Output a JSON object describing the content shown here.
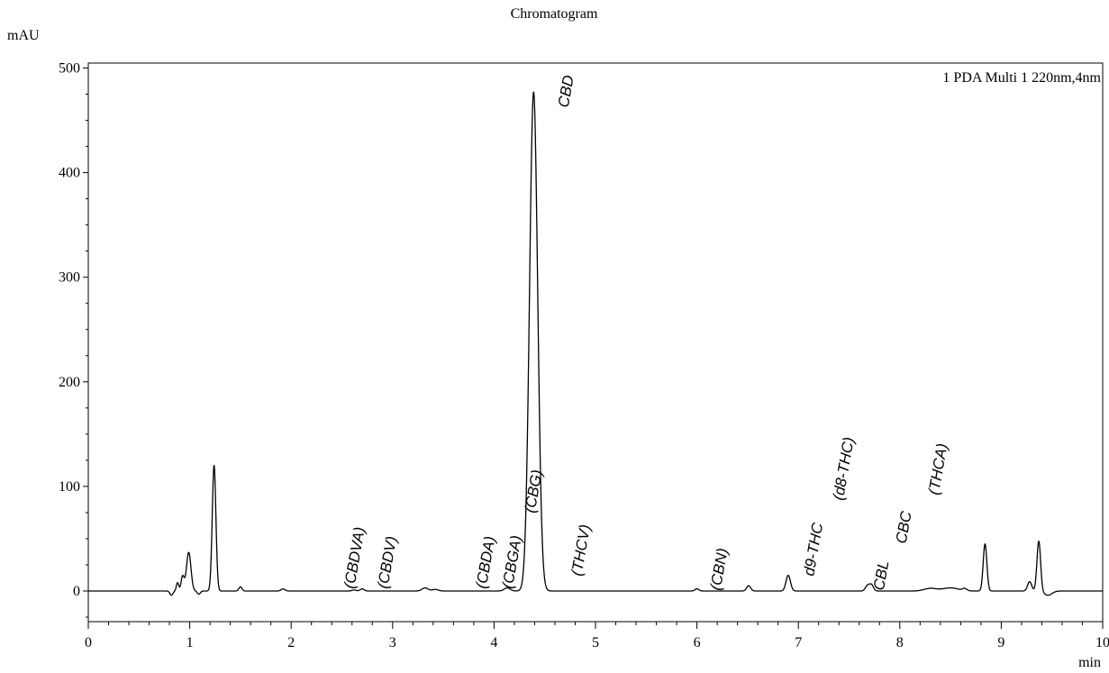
{
  "chart_data": {
    "type": "line",
    "title": "Chromatogram",
    "ylabel": "mAU",
    "xlabel": "min",
    "xlim": [
      0,
      10
    ],
    "ylim": [
      -30,
      505
    ],
    "xticks": [
      0,
      1,
      2,
      3,
      4,
      5,
      6,
      7,
      8,
      9,
      10
    ],
    "xtick_labels": [
      "0",
      "1",
      "2",
      "3",
      "4",
      "5",
      "6",
      "7",
      "8",
      "9",
      "10"
    ],
    "yticks": [
      0,
      100,
      200,
      300,
      400,
      500
    ],
    "ytick_labels": [
      "0",
      "100",
      "200",
      "300",
      "400",
      "500"
    ],
    "grid": false,
    "legend": "top-right",
    "series": [
      {
        "name": "1 PDA Multi 1 220nm,4nm",
        "color": "#000000",
        "baseline": 0,
        "peaks": [
          {
            "rt": 0.82,
            "height": -4,
            "width": 0.015
          },
          {
            "rt": 0.88,
            "height": 8,
            "width": 0.012
          },
          {
            "rt": 0.93,
            "height": 14,
            "width": 0.015
          },
          {
            "rt": 0.99,
            "height": 37,
            "width": 0.022
          },
          {
            "rt": 1.09,
            "height": -3,
            "width": 0.015
          },
          {
            "rt": 1.24,
            "height": 120,
            "width": 0.018
          },
          {
            "rt": 1.5,
            "height": 4,
            "width": 0.015
          },
          {
            "rt": 1.92,
            "height": 2,
            "width": 0.02
          },
          {
            "rt": 2.62,
            "height": 1,
            "width": 0.02
          },
          {
            "rt": 2.7,
            "height": 2,
            "width": 0.02
          },
          {
            "rt": 3.32,
            "height": 3,
            "width": 0.03
          },
          {
            "rt": 3.42,
            "height": 1.5,
            "width": 0.03
          },
          {
            "rt": 4.13,
            "height": 3,
            "width": 0.03
          },
          {
            "rt": 4.39,
            "height": 477,
            "width": 0.04
          },
          {
            "rt": 6.0,
            "height": 2,
            "width": 0.02
          },
          {
            "rt": 6.51,
            "height": 5,
            "width": 0.02
          },
          {
            "rt": 6.9,
            "height": 15,
            "width": 0.022
          },
          {
            "rt": 7.68,
            "height": 5,
            "width": 0.02
          },
          {
            "rt": 7.72,
            "height": 6,
            "width": 0.02
          },
          {
            "rt": 8.3,
            "height": 2.5,
            "width": 0.06
          },
          {
            "rt": 8.5,
            "height": 3,
            "width": 0.08
          },
          {
            "rt": 8.64,
            "height": 2,
            "width": 0.02
          },
          {
            "rt": 8.84,
            "height": 45,
            "width": 0.018
          },
          {
            "rt": 9.28,
            "height": 9,
            "width": 0.02
          },
          {
            "rt": 9.37,
            "height": 48,
            "width": 0.018
          },
          {
            "rt": 9.46,
            "height": -4,
            "width": 0.04
          }
        ]
      }
    ],
    "annotations": [
      {
        "text": "(CBDVA)",
        "x": 2.62
      },
      {
        "text": "(CBDV)",
        "x": 2.95
      },
      {
        "text": "(CBDA)",
        "x": 3.92
      },
      {
        "text": "(CBGA)",
        "x": 4.18
      },
      {
        "text": "(CBG)",
        "x": 4.4
      },
      {
        "text": "CBD",
        "x": 4.73
      },
      {
        "text": "(THCV)",
        "x": 4.86
      },
      {
        "text": "(CBN)",
        "x": 6.23
      },
      {
        "text": "d9-THC",
        "x": 7.15
      },
      {
        "text": "(d8-THC)",
        "x": 7.44
      },
      {
        "text": "CBL",
        "x": 7.84
      },
      {
        "text": "CBC",
        "x": 8.06
      },
      {
        "text": "(THCA)",
        "x": 8.38
      }
    ]
  }
}
